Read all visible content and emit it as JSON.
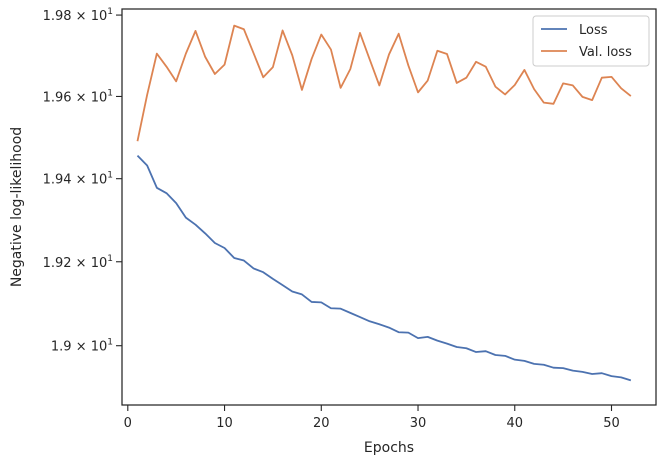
{
  "chart_data": {
    "type": "line",
    "xlabel": "Epochs",
    "ylabel": "Negative log-likelihood",
    "xlim": [
      -0.6,
      54.6
    ],
    "ylim": [
      18.86,
      19.815
    ],
    "y_scale": "log",
    "x_ticks": [
      0,
      10,
      20,
      30,
      40,
      50
    ],
    "y_ticks": [
      {
        "value": 19.0,
        "mantissa": "1.9",
        "times": "×",
        "base": "10",
        "exponent": "1"
      },
      {
        "value": 19.2,
        "mantissa": "1.92",
        "times": "×",
        "base": "10",
        "exponent": "1"
      },
      {
        "value": 19.4,
        "mantissa": "1.94",
        "times": "×",
        "base": "10",
        "exponent": "1"
      },
      {
        "value": 19.6,
        "mantissa": "1.96",
        "times": "×",
        "base": "10",
        "exponent": "1"
      },
      {
        "value": 19.8,
        "mantissa": "1.98",
        "times": "×",
        "base": "10",
        "exponent": "1"
      }
    ],
    "grid": false,
    "legend_position": "top-right",
    "x": [
      1,
      2,
      3,
      4,
      5,
      6,
      7,
      8,
      9,
      10,
      11,
      12,
      13,
      14,
      15,
      16,
      17,
      18,
      19,
      20,
      21,
      22,
      23,
      24,
      25,
      26,
      27,
      28,
      29,
      30,
      31,
      32,
      33,
      34,
      35,
      36,
      37,
      38,
      39,
      40,
      41,
      42,
      43,
      44,
      45,
      46,
      47,
      48,
      49,
      50,
      51,
      52
    ],
    "series": [
      {
        "name": "Loss",
        "color": "#4c72b0",
        "values": [
          19.456,
          19.432,
          19.378,
          19.365,
          19.341,
          19.306,
          19.289,
          19.268,
          19.245,
          19.233,
          19.209,
          19.203,
          19.184,
          19.175,
          19.159,
          19.144,
          19.129,
          19.122,
          19.104,
          19.103,
          19.089,
          19.088,
          19.078,
          19.068,
          19.058,
          19.051,
          19.043,
          19.032,
          19.031,
          19.018,
          19.021,
          19.012,
          19.005,
          18.997,
          18.994,
          18.985,
          18.987,
          18.978,
          18.976,
          18.967,
          18.964,
          18.957,
          18.955,
          18.948,
          18.947,
          18.941,
          18.938,
          18.933,
          18.935,
          18.928,
          18.925,
          18.918
        ]
      },
      {
        "name": "Val. loss",
        "color": "#dd8452",
        "values": [
          19.491,
          19.604,
          19.705,
          19.673,
          19.637,
          19.705,
          19.761,
          19.697,
          19.655,
          19.678,
          19.774,
          19.765,
          19.706,
          19.647,
          19.672,
          19.762,
          19.701,
          19.616,
          19.692,
          19.752,
          19.715,
          19.621,
          19.667,
          19.756,
          19.691,
          19.627,
          19.703,
          19.754,
          19.676,
          19.61,
          19.639,
          19.712,
          19.704,
          19.633,
          19.646,
          19.685,
          19.673,
          19.624,
          19.605,
          19.628,
          19.665,
          19.618,
          19.585,
          19.582,
          19.632,
          19.627,
          19.599,
          19.591,
          19.646,
          19.648,
          19.62,
          19.601
        ]
      }
    ]
  }
}
